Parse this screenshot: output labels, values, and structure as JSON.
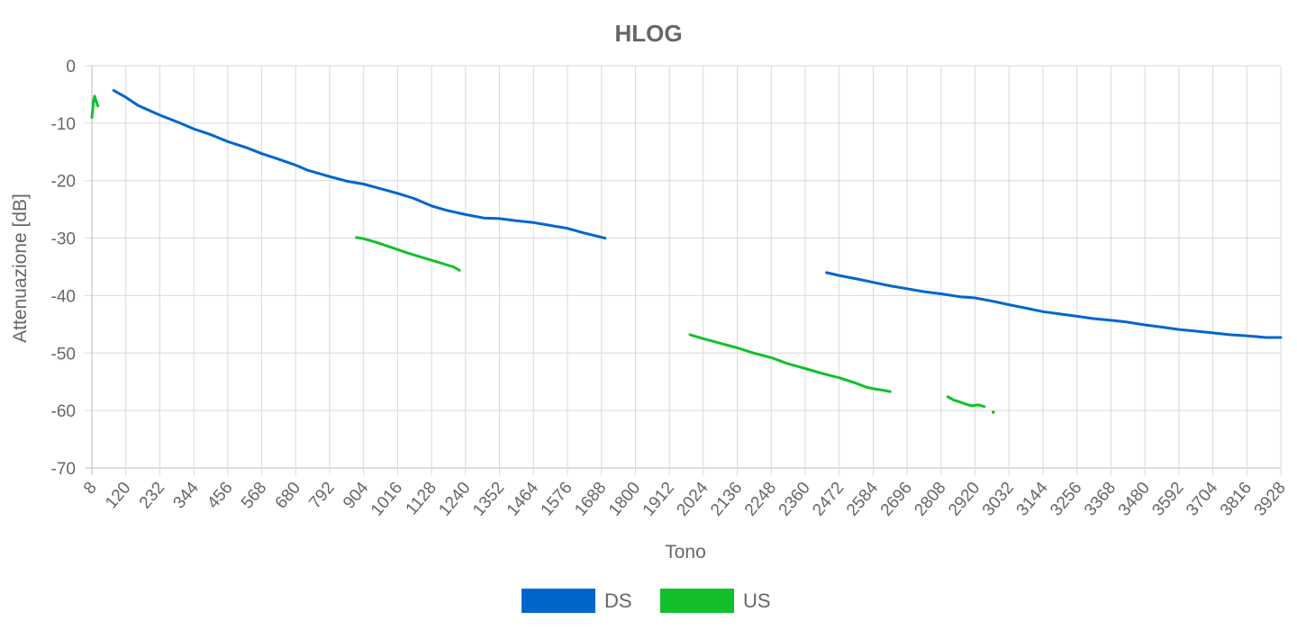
{
  "chart_data": {
    "type": "line",
    "title": "HLOG",
    "xlabel": "Tono",
    "ylabel": "Attenuazione [dB]",
    "xlim": [
      8,
      3928
    ],
    "ylim": [
      -70,
      0
    ],
    "x_ticks": [
      8,
      120,
      232,
      344,
      456,
      568,
      680,
      792,
      904,
      1016,
      1128,
      1240,
      1352,
      1464,
      1576,
      1688,
      1800,
      1912,
      2024,
      2136,
      2248,
      2360,
      2472,
      2584,
      2696,
      2808,
      2920,
      3032,
      3144,
      3256,
      3368,
      3480,
      3592,
      3704,
      3816,
      3928
    ],
    "y_ticks": [
      0,
      -10,
      -20,
      -30,
      -40,
      -50,
      -60,
      -70
    ],
    "grid": true,
    "legend_position": "bottom-center",
    "series": [
      {
        "name": "DS",
        "color": "#0066cc",
        "segments": [
          [
            [
              80,
              -4.3
            ],
            [
              120,
              -5.5
            ],
            [
              160,
              -6.9
            ],
            [
              232,
              -8.6
            ],
            [
              300,
              -10.0
            ],
            [
              344,
              -11.0
            ],
            [
              400,
              -12.0
            ],
            [
              456,
              -13.2
            ],
            [
              520,
              -14.3
            ],
            [
              568,
              -15.3
            ],
            [
              620,
              -16.2
            ],
            [
              680,
              -17.3
            ],
            [
              720,
              -18.2
            ],
            [
              792,
              -19.3
            ],
            [
              850,
              -20.1
            ],
            [
              904,
              -20.6
            ],
            [
              960,
              -21.4
            ],
            [
              1016,
              -22.2
            ],
            [
              1070,
              -23.1
            ],
            [
              1128,
              -24.4
            ],
            [
              1180,
              -25.2
            ],
            [
              1240,
              -25.9
            ],
            [
              1300,
              -26.5
            ],
            [
              1352,
              -26.6
            ],
            [
              1410,
              -27.0
            ],
            [
              1464,
              -27.3
            ],
            [
              1520,
              -27.8
            ],
            [
              1576,
              -28.3
            ],
            [
              1630,
              -29.1
            ],
            [
              1700,
              -30.0
            ]
          ],
          [
            [
              2430,
              -36.0
            ],
            [
              2472,
              -36.5
            ],
            [
              2530,
              -37.1
            ],
            [
              2584,
              -37.7
            ],
            [
              2640,
              -38.3
            ],
            [
              2696,
              -38.8
            ],
            [
              2750,
              -39.3
            ],
            [
              2808,
              -39.7
            ],
            [
              2870,
              -40.2
            ],
            [
              2920,
              -40.4
            ],
            [
              2980,
              -41.0
            ],
            [
              3032,
              -41.6
            ],
            [
              3090,
              -42.2
            ],
            [
              3144,
              -42.8
            ],
            [
              3200,
              -43.2
            ],
            [
              3256,
              -43.6
            ],
            [
              3310,
              -44.0
            ],
            [
              3368,
              -44.3
            ],
            [
              3420,
              -44.6
            ],
            [
              3480,
              -45.1
            ],
            [
              3540,
              -45.5
            ],
            [
              3592,
              -45.9
            ],
            [
              3650,
              -46.2
            ],
            [
              3704,
              -46.5
            ],
            [
              3760,
              -46.8
            ],
            [
              3816,
              -47.0
            ],
            [
              3880,
              -47.3
            ],
            [
              3928,
              -47.3
            ]
          ]
        ]
      },
      {
        "name": "US",
        "color": "#11c02b",
        "segments": [
          [
            [
              8,
              -9.0
            ],
            [
              11,
              -7.5
            ],
            [
              14,
              -6.0
            ],
            [
              17,
              -5.3
            ],
            [
              20,
              -5.8
            ],
            [
              23,
              -6.3
            ],
            [
              26,
              -6.8
            ],
            [
              28,
              -7.0
            ]
          ],
          [
            [
              880,
              -29.9
            ],
            [
              904,
              -30.1
            ],
            [
              950,
              -30.8
            ],
            [
              1000,
              -31.7
            ],
            [
              1050,
              -32.6
            ],
            [
              1100,
              -33.4
            ],
            [
              1150,
              -34.2
            ],
            [
              1200,
              -35.0
            ],
            [
              1220,
              -35.6
            ]
          ],
          [
            [
              1980,
              -46.8
            ],
            [
              2024,
              -47.5
            ],
            [
              2080,
              -48.3
            ],
            [
              2136,
              -49.1
            ],
            [
              2190,
              -50.0
            ],
            [
              2248,
              -50.8
            ],
            [
              2300,
              -51.8
            ],
            [
              2360,
              -52.7
            ],
            [
              2420,
              -53.6
            ],
            [
              2472,
              -54.3
            ],
            [
              2520,
              -55.1
            ],
            [
              2560,
              -55.9
            ],
            [
              2584,
              -56.2
            ],
            [
              2620,
              -56.5
            ],
            [
              2640,
              -56.7
            ]
          ],
          [
            [
              2830,
              -57.6
            ],
            [
              2850,
              -58.2
            ],
            [
              2870,
              -58.5
            ],
            [
              2890,
              -58.9
            ],
            [
              2910,
              -59.2
            ],
            [
              2930,
              -59.0
            ],
            [
              2950,
              -59.3
            ]
          ],
          [
            [
              2980,
              -60.3
            ],
            [
              2984,
              -60.4
            ]
          ]
        ]
      }
    ]
  }
}
